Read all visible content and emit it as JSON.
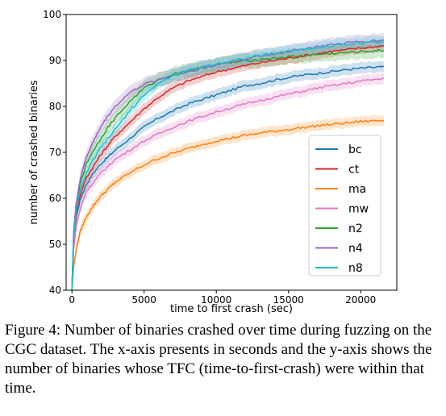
{
  "chart_data": {
    "type": "line",
    "title": "",
    "xlabel": "time to first crash (sec)",
    "ylabel": "number of crashed binaries",
    "xlim": [
      -400,
      22500
    ],
    "ylim": [
      40,
      100
    ],
    "xticks": [
      0,
      5000,
      10000,
      15000,
      20000
    ],
    "yticks": [
      40,
      50,
      60,
      70,
      80,
      90,
      100
    ],
    "grid": false,
    "legend_position": "lower-right",
    "series": [
      {
        "name": "bc",
        "color": "#1f77b4",
        "x": [
          0,
          120,
          300,
          600,
          1000,
          1500,
          2000,
          2500,
          3000,
          4000,
          5000,
          6000,
          7000,
          8000,
          9000,
          10000,
          11000,
          12000,
          13000,
          14000,
          15000,
          16000,
          17000,
          18000,
          19000,
          20000,
          21000,
          21600
        ],
        "y": [
          40,
          51,
          56,
          60,
          63,
          65.5,
          67.5,
          69,
          70.5,
          73,
          75.5,
          77.5,
          79,
          80.5,
          81.5,
          82.5,
          83.5,
          84.5,
          85,
          85.7,
          86.3,
          86.8,
          87.2,
          87.6,
          88,
          88.3,
          88.5,
          88.6
        ],
        "band": 1.2
      },
      {
        "name": "ct",
        "color": "#d62728",
        "x": [
          0,
          120,
          300,
          600,
          1000,
          1500,
          2000,
          2500,
          3000,
          4000,
          5000,
          6000,
          7000,
          8000,
          9000,
          10000,
          11000,
          12000,
          13000,
          14000,
          15000,
          16000,
          17000,
          18000,
          19000,
          20000,
          21000,
          21600
        ],
        "y": [
          40,
          52,
          57,
          61,
          64.5,
          67,
          69.5,
          71.5,
          73.5,
          76.5,
          79.5,
          82,
          84,
          85.5,
          86.5,
          87.5,
          88.2,
          88.9,
          89.5,
          90,
          90.5,
          91,
          91.5,
          92,
          92.3,
          92.7,
          93,
          93.2
        ],
        "band": 1.2
      },
      {
        "name": "ma",
        "color": "#ff7f0e",
        "x": [
          0,
          120,
          300,
          600,
          1000,
          1500,
          2000,
          2500,
          3000,
          4000,
          5000,
          6000,
          7000,
          8000,
          9000,
          10000,
          11000,
          12000,
          13000,
          14000,
          15000,
          16000,
          17000,
          18000,
          19000,
          20000,
          21000,
          21600
        ],
        "y": [
          40,
          45,
          49,
          53,
          56,
          58.5,
          60.5,
          62,
          63.5,
          65.5,
          67.3,
          68.7,
          69.8,
          70.8,
          71.7,
          72.5,
          73.1,
          73.7,
          74.2,
          74.6,
          75,
          75.4,
          75.8,
          76.1,
          76.4,
          76.7,
          76.9,
          77
        ],
        "band": 1.1
      },
      {
        "name": "mw",
        "color": "#e377c2",
        "x": [
          0,
          120,
          300,
          600,
          1000,
          1500,
          2000,
          2500,
          3000,
          4000,
          5000,
          6000,
          7000,
          8000,
          9000,
          10000,
          11000,
          12000,
          13000,
          14000,
          15000,
          16000,
          17000,
          18000,
          19000,
          20000,
          21000,
          21600
        ],
        "y": [
          40,
          49,
          54,
          58,
          61.5,
          63.5,
          65.5,
          67,
          68.5,
          70.5,
          72.5,
          74,
          75.5,
          76.7,
          77.8,
          78.8,
          79.7,
          80.5,
          81.3,
          82,
          82.7,
          83.3,
          84,
          84.5,
          85,
          85.5,
          85.9,
          86.1
        ],
        "band": 1.2
      },
      {
        "name": "n2",
        "color": "#2ca02c",
        "x": [
          0,
          120,
          300,
          600,
          1000,
          1500,
          2000,
          2500,
          3000,
          4000,
          5000,
          6000,
          7000,
          8000,
          9000,
          10000,
          11000,
          12000,
          13000,
          14000,
          15000,
          16000,
          17000,
          18000,
          19000,
          20000,
          21000,
          21600
        ],
        "y": [
          40,
          52,
          58,
          63.5,
          67.5,
          70.5,
          73,
          75.5,
          77.5,
          81,
          84,
          85.8,
          87,
          87.8,
          88.4,
          89,
          89.5,
          89.9,
          90.2,
          90.5,
          90.8,
          91,
          91.3,
          91.5,
          91.7,
          91.9,
          92.1,
          92.2
        ],
        "band": 1.6
      },
      {
        "name": "n4",
        "color": "#9467bd",
        "x": [
          0,
          120,
          300,
          600,
          1000,
          1500,
          2000,
          2500,
          3000,
          4000,
          5000,
          6000,
          7000,
          8000,
          9000,
          10000,
          11000,
          12000,
          13000,
          14000,
          15000,
          16000,
          17000,
          18000,
          19000,
          20000,
          21000,
          21600
        ],
        "y": [
          40,
          53,
          59,
          64.5,
          69,
          72.5,
          75.5,
          78,
          80,
          83,
          84.8,
          85.8,
          86.7,
          87.5,
          88.3,
          89,
          89.7,
          90.3,
          90.9,
          91.4,
          92,
          92.5,
          93,
          93.4,
          93.8,
          94.1,
          94.3,
          94.4
        ],
        "band": 1.5
      },
      {
        "name": "n8",
        "color": "#17becf",
        "x": [
          0,
          120,
          300,
          600,
          1000,
          1500,
          2000,
          2500,
          3000,
          4000,
          5000,
          6000,
          7000,
          8000,
          9000,
          10000,
          11000,
          12000,
          13000,
          14000,
          15000,
          16000,
          17000,
          18000,
          19000,
          20000,
          21000,
          21600
        ],
        "y": [
          40,
          52,
          57.5,
          62,
          65.5,
          68.5,
          71,
          73,
          75,
          79,
          82.5,
          85,
          86.7,
          87.8,
          88.6,
          89.3,
          89.9,
          90.5,
          91,
          91.5,
          92,
          92.4,
          92.8,
          93.2,
          93.5,
          93.8,
          94,
          94.1
        ],
        "band": 1.3
      }
    ]
  },
  "caption": "Figure 4: Number of binaries crashed over time during fuzzing on the CGC dataset. The x-axis presents in seconds and the y-axis shows the number of binaries whose TFC (time-to-first-crash) were within that time."
}
